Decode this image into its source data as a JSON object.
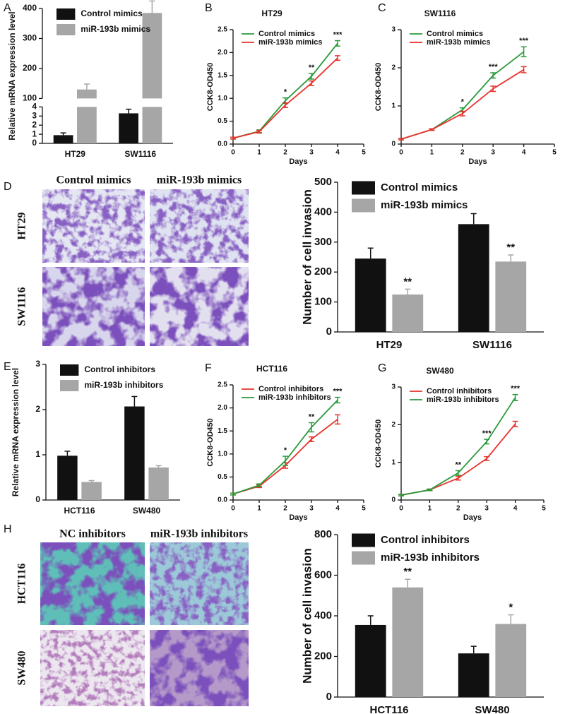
{
  "figure_images": [
    {
      "panel": "D",
      "columns": [
        "Control mimics",
        "miR-193b mimics"
      ],
      "rows": [
        "HT29",
        "SW1116"
      ]
    },
    {
      "panel": "H",
      "columns": [
        "NC inhibitors",
        "miR-193b inhibitors"
      ],
      "rows": [
        "HCT116",
        "SW480"
      ]
    }
  ],
  "chart_data": [
    {
      "type": "bar",
      "panel": "A",
      "y_label": "Relative mRNA expression level",
      "categories": [
        "HT29",
        "SW1116"
      ],
      "series": [
        {
          "name": "Control mimics",
          "color": "#111111",
          "values": [
            0.9,
            3.3
          ],
          "errors": [
            0.25,
            0.45
          ]
        },
        {
          "name": "miR-193b mimics",
          "color": "#a6a6a6",
          "values": [
            130,
            385
          ],
          "errors": [
            18,
            40
          ]
        }
      ],
      "ylim": [
        0,
        400
      ],
      "ybreak": [
        4,
        100
      ],
      "yticks": [
        0,
        1,
        2,
        3,
        4,
        100,
        200,
        300,
        400
      ],
      "legend": "upper left"
    },
    {
      "type": "line",
      "panel": "B",
      "title": "HT29",
      "x_label": "Days",
      "y_label": "CCK8-OD450",
      "x": [
        0,
        1,
        2,
        3,
        4
      ],
      "series": [
        {
          "name": "Control mimics",
          "color": "#2a9a3a",
          "values": [
            0.13,
            0.28,
            0.95,
            1.48,
            2.2
          ],
          "errors": [
            0.02,
            0.03,
            0.06,
            0.06,
            0.06
          ]
        },
        {
          "name": "miR-193b mimics",
          "color": "#e8322c",
          "values": [
            0.13,
            0.27,
            0.85,
            1.33,
            1.88
          ],
          "errors": [
            0.02,
            0.03,
            0.05,
            0.05,
            0.05
          ]
        }
      ],
      "annotations": [
        null,
        null,
        "*",
        "**",
        "***"
      ],
      "xlim": [
        0,
        5
      ],
      "xticks": [
        0,
        1,
        2,
        3,
        4,
        5
      ],
      "ylim": [
        0,
        2.5
      ],
      "yticks": [
        {
          "value": 0,
          "label": "0.0"
        },
        {
          "value": 0.5,
          "label": "0.5"
        },
        {
          "value": 1,
          "label": "1.0"
        },
        {
          "value": 1.5,
          "label": "1.5"
        },
        {
          "value": 2,
          "label": "2.0"
        },
        {
          "value": 2.5,
          "label": "2.5"
        }
      ],
      "legend": "upper left"
    },
    {
      "type": "line",
      "panel": "C",
      "title": "SW1116",
      "x_label": "Days",
      "y_label": "CCK8-OD450",
      "x": [
        0,
        1,
        2,
        3,
        4
      ],
      "series": [
        {
          "name": "Control mimics",
          "color": "#2a9a3a",
          "values": [
            0.13,
            0.38,
            0.9,
            1.8,
            2.42
          ],
          "errors": [
            0.02,
            0.02,
            0.05,
            0.07,
            0.13
          ]
        },
        {
          "name": "miR-193b mimics",
          "color": "#e8322c",
          "values": [
            0.13,
            0.38,
            0.8,
            1.45,
            1.95
          ],
          "errors": [
            0.02,
            0.02,
            0.06,
            0.07,
            0.08
          ]
        }
      ],
      "annotations": [
        null,
        null,
        "*",
        "***",
        "***"
      ],
      "xlim": [
        0,
        5
      ],
      "xticks": [
        0,
        1,
        2,
        3,
        4,
        5
      ],
      "ylim": [
        0,
        3
      ],
      "yticks": [
        0,
        1,
        2,
        3
      ],
      "legend": "upper left"
    },
    {
      "type": "bar",
      "y_label": "Number of cell invasion",
      "categories": [
        "HT29",
        "SW1116"
      ],
      "series": [
        {
          "name": "Control mimics",
          "color": "#111111",
          "values": [
            245,
            360
          ],
          "errors": [
            35,
            35
          ]
        },
        {
          "name": "miR-193b mimics",
          "color": "#a6a6a6",
          "values": [
            125,
            235
          ],
          "errors": [
            18,
            22
          ],
          "annotations": [
            "**",
            "**"
          ]
        }
      ],
      "ylim": [
        0,
        500
      ],
      "yticks": [
        0,
        100,
        200,
        300,
        400,
        500
      ],
      "legend": "upper left"
    },
    {
      "type": "bar",
      "panel": "E",
      "y_label": "Relative mRNA expression level",
      "categories": [
        "HCT116",
        "SW480"
      ],
      "series": [
        {
          "name": "Control inhibitors",
          "color": "#111111",
          "values": [
            0.98,
            2.07
          ],
          "errors": [
            0.1,
            0.22
          ]
        },
        {
          "name": "miR-193b inhibitors",
          "color": "#a6a6a6",
          "values": [
            0.4,
            0.72
          ],
          "errors": [
            0.03,
            0.04
          ]
        }
      ],
      "ylim": [
        0,
        3
      ],
      "yticks": [
        0,
        1,
        2,
        3
      ],
      "legend": "upper left"
    },
    {
      "type": "line",
      "panel": "F",
      "title": "HCT116",
      "x_label": "Days",
      "y_label": "CCK8-OD450",
      "x": [
        0,
        1,
        2,
        3,
        4
      ],
      "series": [
        {
          "name": "Control inhibitors",
          "color": "#e8322c",
          "values": [
            0.13,
            0.3,
            0.75,
            1.32,
            1.75
          ],
          "errors": [
            0.02,
            0.03,
            0.06,
            0.05,
            0.1
          ]
        },
        {
          "name": "miR-193b inhibitors",
          "color": "#2a9a3a",
          "values": [
            0.13,
            0.32,
            0.85,
            1.58,
            2.17
          ],
          "errors": [
            0.02,
            0.03,
            0.1,
            0.1,
            0.06
          ]
        }
      ],
      "annotations": [
        null,
        null,
        "*",
        "**",
        "***"
      ],
      "xlim": [
        0,
        5
      ],
      "xticks": [
        0,
        1,
        2,
        3,
        4,
        5
      ],
      "ylim": [
        0,
        2.5
      ],
      "yticks": [
        {
          "value": 0,
          "label": "0.0"
        },
        {
          "value": 0.5,
          "label": "0.5"
        },
        {
          "value": 1,
          "label": "1.0"
        },
        {
          "value": 1.5,
          "label": "1.5"
        },
        {
          "value": 2,
          "label": "2.0"
        },
        {
          "value": 2.5,
          "label": "2.5"
        }
      ],
      "legend": "upper left"
    },
    {
      "type": "line",
      "panel": "G",
      "title": "SW480",
      "x_label": "Days",
      "y_label": "CCK8-OD450",
      "x": [
        0,
        1,
        2,
        3,
        4
      ],
      "series": [
        {
          "name": "Control inhibitors",
          "color": "#e8322c",
          "values": [
            0.13,
            0.27,
            0.58,
            1.1,
            2.02
          ],
          "errors": [
            0.02,
            0.02,
            0.05,
            0.05,
            0.07
          ]
        },
        {
          "name": "miR-193b inhibitors",
          "color": "#2a9a3a",
          "values": [
            0.13,
            0.27,
            0.72,
            1.55,
            2.72
          ],
          "errors": [
            0.02,
            0.02,
            0.06,
            0.06,
            0.08
          ]
        }
      ],
      "annotations": [
        null,
        null,
        "**",
        "***",
        "***"
      ],
      "xlim": [
        0,
        5
      ],
      "xticks": [
        0,
        1,
        2,
        3,
        4,
        5
      ],
      "ylim": [
        0,
        3
      ],
      "yticks": [
        0,
        1,
        2,
        3
      ],
      "legend": "upper left"
    },
    {
      "type": "bar",
      "y_label": "Number of cell invasion",
      "categories": [
        "HCT116",
        "SW480"
      ],
      "series": [
        {
          "name": "Control inhibitors",
          "color": "#111111",
          "values": [
            355,
            215
          ],
          "errors": [
            45,
            35
          ]
        },
        {
          "name": "miR-193b inhibitors",
          "color": "#a6a6a6",
          "values": [
            540,
            360
          ],
          "errors": [
            40,
            45
          ],
          "annotations": [
            "**",
            "*"
          ]
        }
      ],
      "ylim": [
        0,
        800
      ],
      "yticks": [
        0,
        200,
        400,
        600,
        800
      ],
      "legend": "upper left"
    }
  ]
}
